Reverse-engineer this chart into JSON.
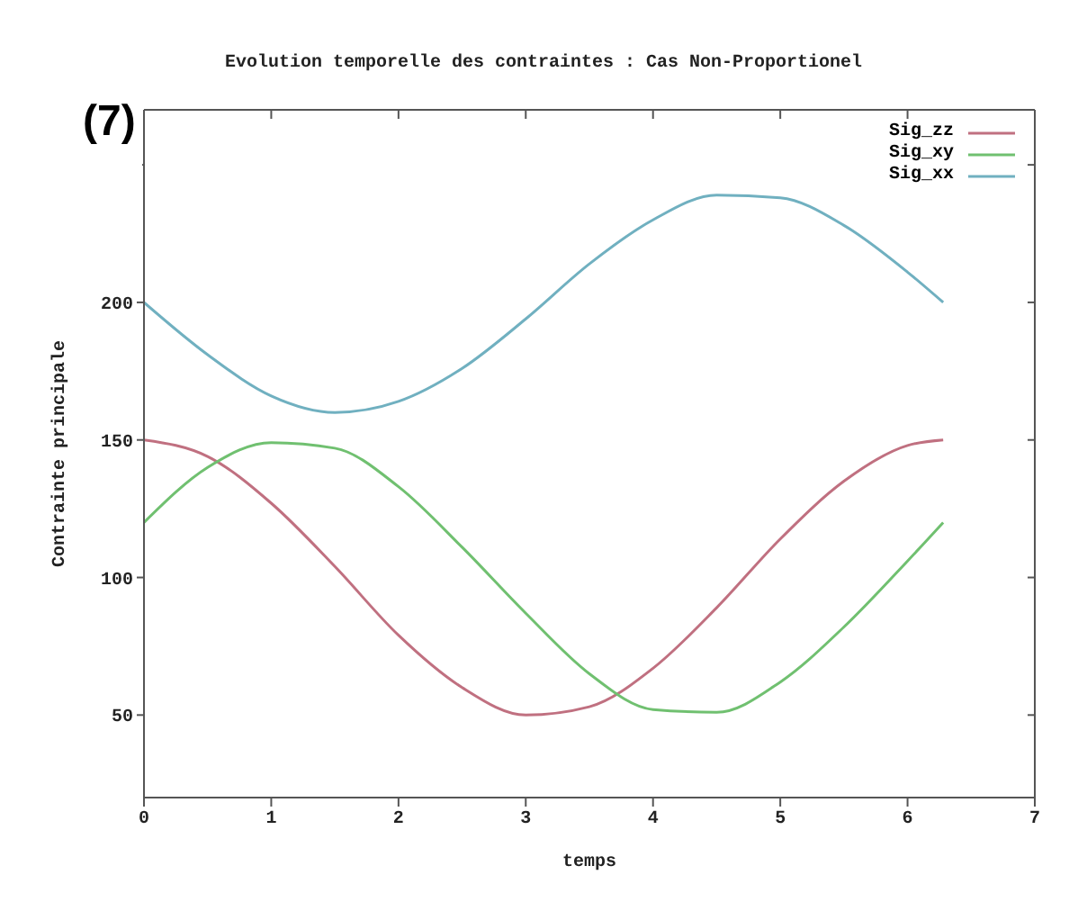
{
  "chart_data": {
    "type": "line",
    "title": "Evolution temporelle des contraintes : Cas Non-Proportionel",
    "xlabel": "temps",
    "ylabel": "Contrainte principale",
    "annotations": [
      "(7)"
    ],
    "x": [
      0,
      0.5,
      1,
      1.5,
      2,
      2.5,
      3,
      3.5,
      4,
      4.5,
      5,
      5.5,
      6,
      6.28
    ],
    "series": [
      {
        "name": "Sig_zz",
        "color": "#c07080",
        "values": [
          150,
          144,
          127,
          104,
          79,
          60,
          50,
          53,
          67,
          89,
          114,
          135,
          148,
          150
        ]
      },
      {
        "name": "Sig_xy",
        "color": "#70c070",
        "values": [
          120,
          140,
          149,
          147,
          133,
          111,
          87,
          65,
          52,
          51,
          62,
          82,
          106,
          120
        ]
      },
      {
        "name": "Sig_xx",
        "color": "#70b0c0",
        "values": [
          200,
          181,
          166,
          160,
          164,
          176,
          194,
          214,
          230,
          239,
          238,
          228,
          211,
          200
        ]
      }
    ],
    "xlim": [
      0,
      7
    ],
    "xticks": [
      0,
      1,
      2,
      3,
      4,
      5,
      6,
      7
    ],
    "ylim": [
      20,
      270
    ],
    "yticks": [
      50,
      100,
      150,
      200,
      {
        "value": 250,
        "label": null
      }
    ],
    "legend": "top right",
    "marker": "none",
    "line_style": "solid"
  }
}
